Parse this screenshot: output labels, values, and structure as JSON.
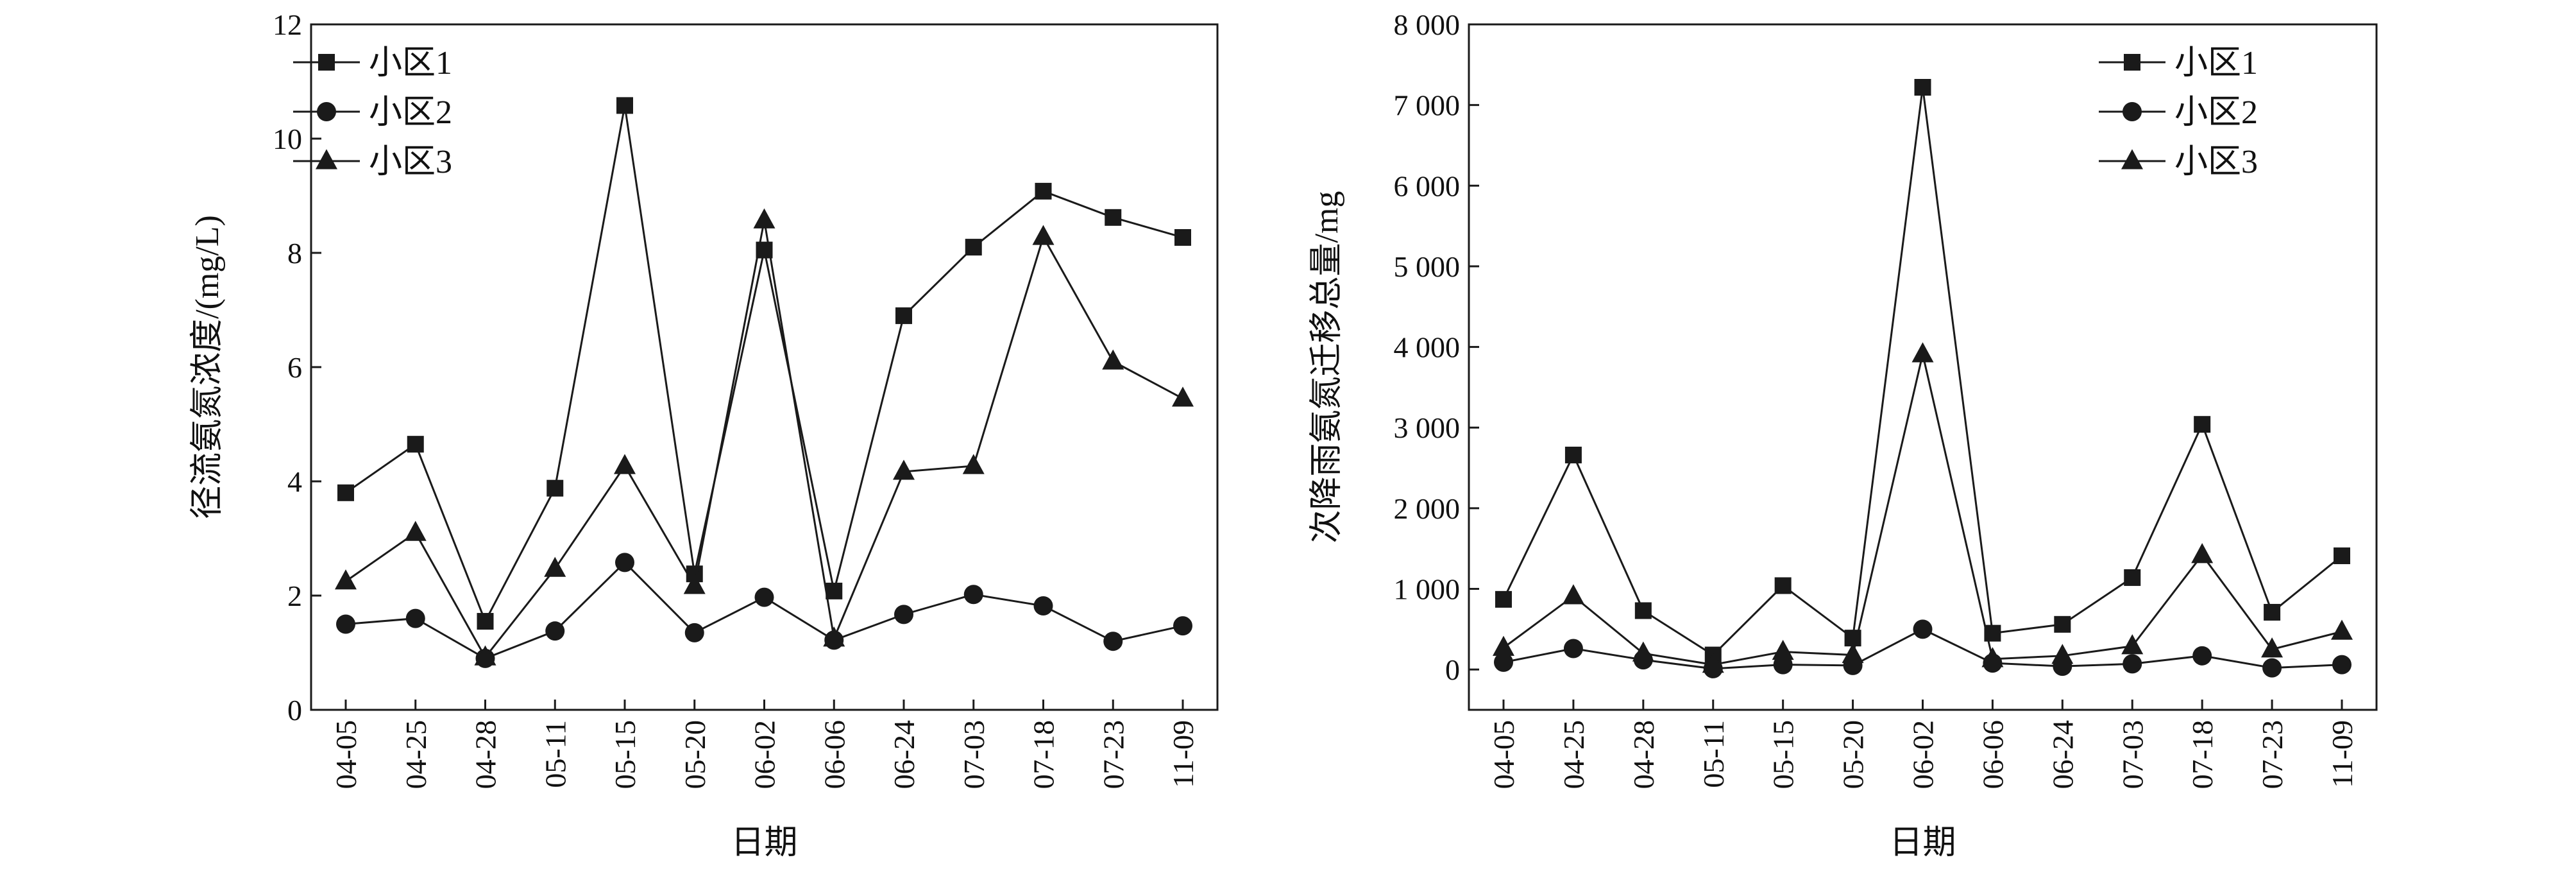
{
  "chart_data": [
    {
      "type": "line",
      "x": [
        "04-05",
        "04-25",
        "04-28",
        "05-11",
        "05-15",
        "05-20",
        "06-02",
        "06-06",
        "06-24",
        "07-03",
        "07-18",
        "07-23",
        "11-09"
      ],
      "xlabel": "日期",
      "ylabel": "径流氨氮浓度/(mg/L)",
      "ylim": [
        0,
        12
      ],
      "yticks": [
        0,
        2,
        4,
        6,
        8,
        10,
        12
      ],
      "ytick_labels": [
        "0",
        "2",
        "4",
        "6",
        "8",
        "10",
        "12"
      ],
      "grid": false,
      "legend_position": "top-left",
      "series": [
        {
          "name": "小区1",
          "marker": "square",
          "values": [
            3.8,
            4.65,
            1.55,
            3.88,
            10.58,
            2.38,
            8.05,
            2.08,
            6.9,
            8.1,
            9.08,
            8.62,
            8.27
          ]
        },
        {
          "name": "小区2",
          "marker": "circle",
          "values": [
            1.5,
            1.6,
            0.9,
            1.38,
            2.58,
            1.35,
            1.97,
            1.22,
            1.67,
            2.02,
            1.82,
            1.2,
            1.47
          ]
        },
        {
          "name": "小区3",
          "marker": "triangle",
          "values": [
            2.25,
            3.1,
            0.92,
            2.47,
            4.27,
            2.17,
            8.57,
            1.25,
            4.17,
            4.27,
            8.28,
            6.1,
            5.45
          ]
        }
      ]
    },
    {
      "type": "line",
      "x": [
        "04-05",
        "04-25",
        "04-28",
        "05-11",
        "05-15",
        "05-20",
        "06-02",
        "06-06",
        "06-24",
        "07-03",
        "07-18",
        "07-23",
        "11-09"
      ],
      "xlabel": "日期",
      "ylabel": "次降雨氨氮迁移总量/mg",
      "ylim": [
        -500,
        8000
      ],
      "yticks": [
        0,
        1000,
        2000,
        3000,
        4000,
        5000,
        6000,
        7000,
        8000
      ],
      "ytick_labels": [
        "0",
        "1 000",
        "2 000",
        "3 000",
        "4 000",
        "5 000",
        "6 000",
        "7 000",
        "8 000"
      ],
      "grid": false,
      "legend_position": "top-right",
      "series": [
        {
          "name": "小区1",
          "marker": "square",
          "values": [
            870,
            2660,
            730,
            180,
            1040,
            390,
            7220,
            450,
            560,
            1140,
            3040,
            710,
            1410
          ]
        },
        {
          "name": "小区2",
          "marker": "circle",
          "values": [
            90,
            260,
            120,
            10,
            60,
            50,
            500,
            80,
            40,
            70,
            170,
            20,
            60
          ]
        },
        {
          "name": "小区3",
          "marker": "triangle",
          "values": [
            270,
            910,
            200,
            60,
            220,
            180,
            3910,
            130,
            170,
            290,
            1420,
            250,
            470
          ]
        }
      ]
    }
  ]
}
